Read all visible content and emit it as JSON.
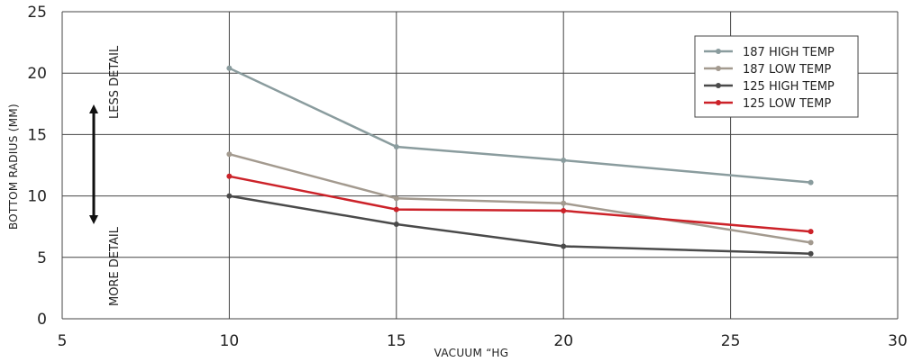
{
  "chart_data": {
    "type": "line",
    "title": "",
    "xlabel": "VACUUM “HG",
    "ylabel": "BOTTOM RADIUS (MM)",
    "xlim": [
      5,
      30
    ],
    "ylim": [
      0,
      25
    ],
    "x_ticks": [
      "5",
      "10",
      "15",
      "20",
      "25",
      "30"
    ],
    "y_ticks": [
      "0",
      "5",
      "10",
      "15",
      "20",
      "25"
    ],
    "grid": true,
    "legend_position": "top-right",
    "series": [
      {
        "name": "187 HIGH TEMP",
        "color": "#8a9c9e",
        "x": [
          10,
          15,
          20,
          27.4
        ],
        "y": [
          20.4,
          14.0,
          12.9,
          11.1
        ]
      },
      {
        "name": "187 LOW TEMP",
        "color": "#a39a8f",
        "x": [
          10,
          15,
          20,
          27.4
        ],
        "y": [
          13.4,
          9.8,
          9.4,
          6.2
        ]
      },
      {
        "name": "125 HIGH TEMP",
        "color": "#4a4a4a",
        "x": [
          10,
          15,
          20,
          27.4
        ],
        "y": [
          10.0,
          7.7,
          5.9,
          5.3
        ]
      },
      {
        "name": "125 LOW TEMP",
        "color": "#cc2229",
        "x": [
          10,
          15,
          20,
          27.4
        ],
        "y": [
          11.6,
          8.9,
          8.8,
          7.1
        ]
      }
    ],
    "annotations": {
      "less_detail": "LESS DETAIL",
      "more_detail": "MORE DETAIL"
    }
  }
}
